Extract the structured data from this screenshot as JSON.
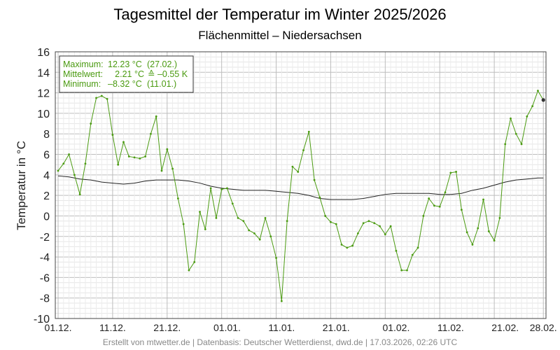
{
  "chart_data": {
    "type": "line",
    "title": "Tagesmittel der Temperatur im Winter 2025/2026",
    "subtitle": "Flächenmittel – Niedersachsen",
    "ylabel": "Temperatur in °C",
    "xlabel": "",
    "ylim": [
      -10,
      16
    ],
    "yticks": [
      -10,
      -8,
      -6,
      -4,
      -2,
      0,
      2,
      4,
      6,
      8,
      10,
      12,
      14,
      16
    ],
    "xticks": [
      "01.12.",
      "11.12.",
      "21.12.",
      "01.01.",
      "11.01.",
      "21.01.",
      "01.02.",
      "11.02.",
      "21.02.",
      "28.02."
    ],
    "grid": true,
    "legend_position": "top-left",
    "legend": [
      {
        "label": "Maximum:",
        "value": "12.23 °C",
        "date": "(27.02.)"
      },
      {
        "label": "Mittelwert:",
        "value": "2.21 °C",
        "extra": "≙ –0.55 K"
      },
      {
        "label": "Minimum:",
        "value": "–8.32 °C",
        "date": "(11.01.)"
      }
    ],
    "colors": {
      "daily": "#4a9a10",
      "normal": "#222222",
      "legend_text": "#4a9a10",
      "grid": "#cccccc"
    },
    "series": [
      {
        "values": [
          4.4,
          5.1,
          6.0,
          4.0,
          2.1,
          5.1,
          9.0,
          11.5,
          11.7,
          11.4,
          7.9,
          5.0,
          7.2,
          5.8,
          5.7,
          5.6,
          5.8,
          8.0,
          9.7,
          4.4,
          6.5,
          4.6,
          1.7,
          -0.8,
          -5.3,
          -4.5,
          0.4,
          -1.3,
          2.7,
          -0.2,
          2.6,
          2.7,
          1.2,
          -0.2,
          -0.5,
          -1.4,
          -1.7,
          -2.3,
          -0.2,
          -2.0,
          -4.1,
          -8.3,
          -0.5,
          4.8,
          4.3,
          6.4,
          8.2,
          3.5,
          1.8,
          0.0,
          -0.6,
          -0.8,
          -2.8,
          -3.1,
          -2.9,
          -1.7,
          -0.7,
          -0.5,
          -0.7,
          -1.0,
          -1.8,
          -1.0,
          -3.4,
          -5.3,
          -5.3,
          -3.8,
          -3.1,
          0.0,
          1.7,
          1.0,
          0.9,
          2.3,
          4.2,
          4.3,
          0.6,
          -1.6,
          -2.8,
          -1.2,
          1.6,
          -1.5,
          -2.4,
          -0.2,
          7.0,
          9.5,
          8.0,
          7.0,
          9.7,
          10.7,
          12.2,
          11.3
        ]
      },
      {
        "values": [
          3.9,
          3.8,
          3.6,
          3.5,
          3.3,
          3.2,
          3.1,
          3.2,
          3.4,
          3.5,
          3.5,
          3.5,
          3.4,
          3.2,
          2.9,
          2.7,
          2.6,
          2.5,
          2.5,
          2.5,
          2.4,
          2.3,
          2.2,
          2.0,
          1.7,
          1.6,
          1.6,
          1.6,
          1.7,
          1.9,
          2.1,
          2.2,
          2.2,
          2.2,
          2.2,
          2.1,
          2.1,
          2.2,
          2.5,
          2.7,
          3.0,
          3.3,
          3.5,
          3.6,
          3.7,
          3.7
        ],
        "x_index": [
          0,
          2,
          4,
          6,
          8,
          10,
          12,
          14,
          16,
          18,
          20,
          22,
          24,
          26,
          28,
          30,
          32,
          34,
          36,
          38,
          40,
          42,
          44,
          46,
          48,
          50,
          52,
          54,
          56,
          58,
          60,
          62,
          64,
          66,
          68,
          70,
          72,
          74,
          76,
          78,
          80,
          82,
          84,
          86,
          88,
          89
        ]
      }
    ]
  },
  "footer": "Erstellt von mtwetter.de | Datenbasis: Deutscher Wetterdienst, dwd.de | 17.03.2026, 02:26 UTC"
}
